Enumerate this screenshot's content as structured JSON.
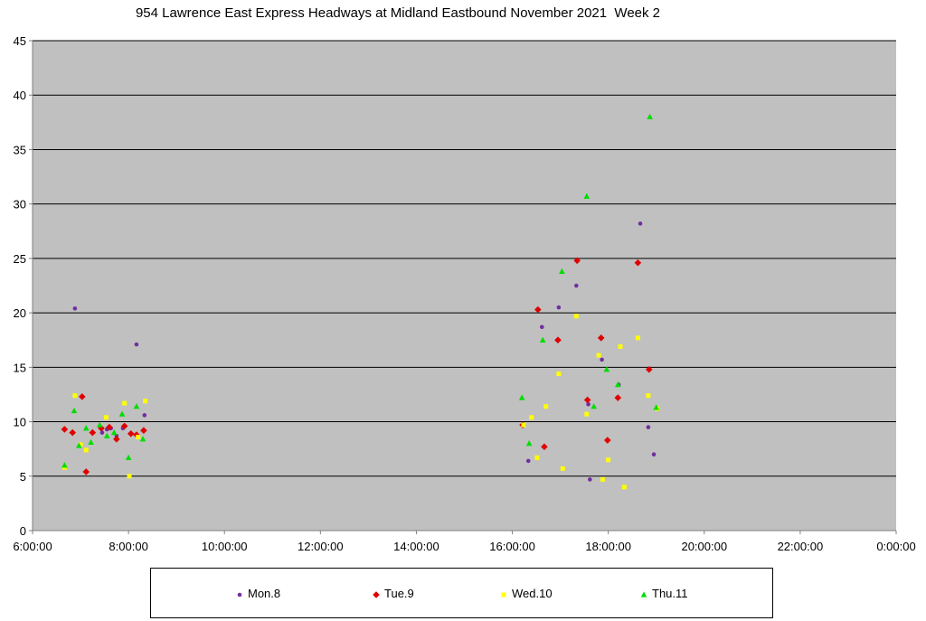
{
  "chart_data": {
    "type": "scatter",
    "title": "954 Lawrence East Express Headways at Midland Eastbound November 2021  Week 2",
    "xlabel": "",
    "ylabel": "",
    "xlim": [
      "6:00:00",
      "0:00:00"
    ],
    "ylim": [
      0,
      45
    ],
    "x_ticks": [
      "6:00:00",
      "8:00:00",
      "10:00:00",
      "12:00:00",
      "14:00:00",
      "16:00:00",
      "18:00:00",
      "20:00:00",
      "22:00:00",
      "0:00:00"
    ],
    "y_ticks": [
      "0",
      "5",
      "10",
      "15",
      "20",
      "25",
      "30",
      "35",
      "40",
      "45"
    ],
    "plot_background": "#c0c0c0",
    "gridlines": "horizontal",
    "legend_position": "bottom",
    "series": [
      {
        "name": "Mon.8",
        "marker": "circle",
        "color": "#7030a0",
        "points": [
          [
            "6:53",
            20.4
          ],
          [
            "7:27",
            9.0
          ],
          [
            "7:33",
            9.3
          ],
          [
            "7:38",
            9.4
          ],
          [
            "7:45",
            8.7
          ],
          [
            "7:53",
            9.4
          ],
          [
            "8:10",
            17.1
          ],
          [
            "8:20",
            10.6
          ],
          [
            "16:20",
            6.4
          ],
          [
            "16:37",
            18.7
          ],
          [
            "16:58",
            20.5
          ],
          [
            "17:20",
            22.5
          ],
          [
            "17:35",
            11.6
          ],
          [
            "17:37",
            4.7
          ],
          [
            "17:52",
            15.7
          ],
          [
            "18:13",
            13.4
          ],
          [
            "18:40",
            28.2
          ],
          [
            "18:50",
            9.5
          ],
          [
            "18:57",
            7.0
          ]
        ]
      },
      {
        "name": "Tue.9",
        "marker": "diamond",
        "color": "#e00000",
        "points": [
          [
            "6:40",
            9.3
          ],
          [
            "6:50",
            9.0
          ],
          [
            "7:02",
            12.3
          ],
          [
            "7:07",
            5.4
          ],
          [
            "7:15",
            9.0
          ],
          [
            "7:26",
            9.4
          ],
          [
            "7:36",
            9.5
          ],
          [
            "7:45",
            8.4
          ],
          [
            "7:55",
            9.6
          ],
          [
            "8:03",
            8.9
          ],
          [
            "8:10",
            8.8
          ],
          [
            "8:19",
            9.2
          ],
          [
            "16:13",
            9.7
          ],
          [
            "16:32",
            20.3
          ],
          [
            "16:40",
            7.7
          ],
          [
            "16:57",
            17.5
          ],
          [
            "17:21",
            24.8
          ],
          [
            "17:34",
            12.0
          ],
          [
            "17:51",
            17.7
          ],
          [
            "17:59",
            8.3
          ],
          [
            "18:12",
            12.2
          ],
          [
            "18:37",
            24.6
          ],
          [
            "18:51",
            14.8
          ]
        ]
      },
      {
        "name": "Wed.10",
        "marker": "square",
        "color": "#ffff00",
        "points": [
          [
            "6:40",
            5.8
          ],
          [
            "6:53",
            12.4
          ],
          [
            "7:00",
            7.9
          ],
          [
            "7:07",
            7.4
          ],
          [
            "7:32",
            10.4
          ],
          [
            "7:55",
            11.7
          ],
          [
            "8:01",
            5.0
          ],
          [
            "8:12",
            8.6
          ],
          [
            "8:21",
            11.9
          ],
          [
            "16:14",
            9.7
          ],
          [
            "16:24",
            10.4
          ],
          [
            "16:31",
            6.7
          ],
          [
            "16:42",
            11.4
          ],
          [
            "16:58",
            14.4
          ],
          [
            "17:03",
            5.7
          ],
          [
            "17:20",
            19.7
          ],
          [
            "17:33",
            10.7
          ],
          [
            "17:48",
            16.1
          ],
          [
            "17:53",
            4.7
          ],
          [
            "18:00",
            6.5
          ],
          [
            "18:15",
            16.9
          ],
          [
            "18:20",
            4.0
          ],
          [
            "18:37",
            17.7
          ],
          [
            "18:50",
            12.4
          ],
          [
            "19:01",
            11.2
          ]
        ]
      },
      {
        "name": "Thu.11",
        "marker": "triangle",
        "color": "#00dd00",
        "points": [
          [
            "6:40",
            6.0
          ],
          [
            "6:52",
            11.0
          ],
          [
            "6:58",
            7.8
          ],
          [
            "7:07",
            9.4
          ],
          [
            "7:13",
            8.1
          ],
          [
            "7:24",
            9.7
          ],
          [
            "7:33",
            8.7
          ],
          [
            "7:42",
            9.0
          ],
          [
            "7:52",
            10.7
          ],
          [
            "8:00",
            6.7
          ],
          [
            "8:10",
            11.4
          ],
          [
            "8:18",
            8.4
          ],
          [
            "16:12",
            12.2
          ],
          [
            "16:21",
            8.0
          ],
          [
            "16:38",
            17.5
          ],
          [
            "17:02",
            23.8
          ],
          [
            "17:33",
            30.7
          ],
          [
            "17:42",
            11.4
          ],
          [
            "17:58",
            14.8
          ],
          [
            "18:12",
            13.4
          ],
          [
            "18:52",
            38.0
          ],
          [
            "19:00",
            11.3
          ]
        ]
      }
    ]
  }
}
